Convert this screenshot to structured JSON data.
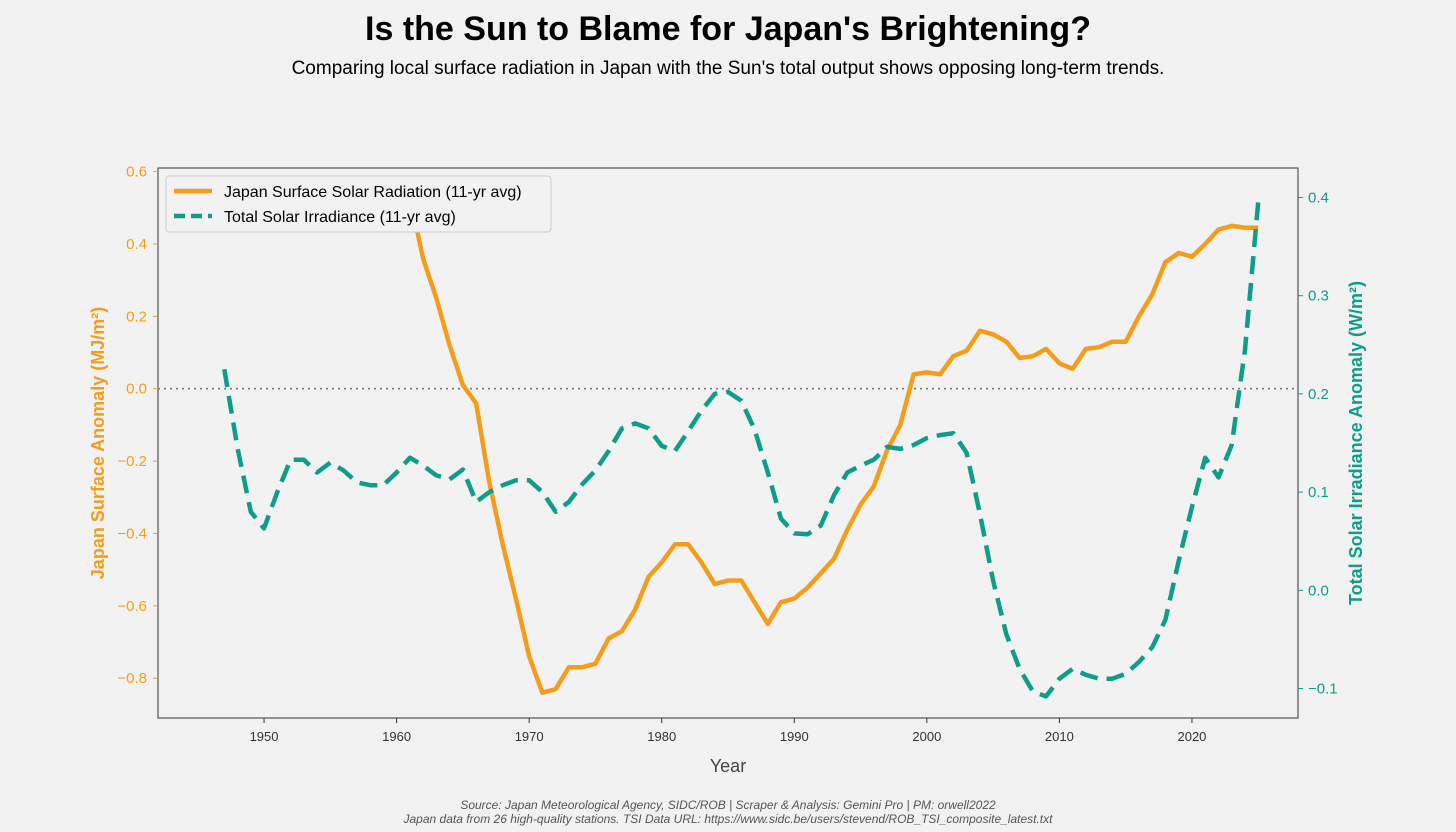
{
  "header": {
    "title": "Is the Sun to Blame for Japan's Brightening?",
    "subtitle": "Comparing local surface radiation in Japan with the Sun's total output shows opposing long-term trends."
  },
  "footer": {
    "line1": "Source: Japan Meteorological Agency, SIDC/ROB | Scraper & Analysis: Gemini Pro | PM: orwell2022",
    "line2": "Japan data from 26 high-quality stations. TSI Data URL: https://www.sidc.be/users/stevend/ROB_TSI_composite_latest.txt"
  },
  "colors": {
    "japan": "#f59c1a",
    "tsi": "#0d9e8a",
    "axis": "#333333",
    "background": "#f2f2f2",
    "zero_line": "#777777"
  },
  "chart_data": {
    "type": "line",
    "xlabel": "Year",
    "ylabel_left": "Japan Surface Anomaly (MJ/m²)",
    "ylabel_right": "Total Solar Irradiance Anomaly (W/m²)",
    "xlim": [
      1942,
      2028
    ],
    "ylim_left": [
      -0.91,
      0.61
    ],
    "ylim_right": [
      -0.13,
      0.43
    ],
    "x_ticks": [
      1950,
      1960,
      1970,
      1980,
      1990,
      2000,
      2010,
      2020
    ],
    "x_tick_labels": [
      "1950",
      "1960",
      "1970",
      "1980",
      "1990",
      "2000",
      "2010",
      "2020"
    ],
    "y_left_ticks": [
      0.6,
      0.4,
      0.2,
      0.0,
      -0.2,
      -0.4,
      -0.6,
      -0.8
    ],
    "y_left_tick_labels": [
      "0.6",
      "0.4",
      "0.2",
      "0.0",
      "−0.2",
      "−0.4",
      "−0.6",
      "−0.8"
    ],
    "y_right_ticks": [
      0.4,
      0.3,
      0.2,
      0.1,
      0.0,
      -0.1
    ],
    "y_right_tick_labels": [
      "0.4",
      "0.3",
      "0.2",
      "0.1",
      "0.0",
      "−0.1"
    ],
    "zero_line": {
      "axis": "left",
      "value": 0.0,
      "style": "dotted"
    },
    "legend": {
      "position": "top-left",
      "entries": [
        "Japan Surface Solar Radiation (11-yr avg)",
        "Total Solar Irradiance (11-yr avg)"
      ]
    },
    "series": [
      {
        "name": "Japan Surface Solar Radiation (11-yr avg)",
        "axis": "left",
        "style": "solid",
        "x": [
          1961,
          1962,
          1963,
          1964,
          1965,
          1966,
          1967,
          1968,
          1969,
          1970,
          1971,
          1972,
          1973,
          1974,
          1975,
          1976,
          1977,
          1978,
          1979,
          1980,
          1981,
          1982,
          1983,
          1984,
          1985,
          1986,
          1987,
          1988,
          1989,
          1990,
          1991,
          1992,
          1993,
          1994,
          1995,
          1996,
          1997,
          1998,
          1999,
          2000,
          2001,
          2002,
          2003,
          2004,
          2005,
          2006,
          2007,
          2008,
          2009,
          2010,
          2011,
          2012,
          2013,
          2014,
          2015,
          2016,
          2017,
          2018,
          2019,
          2020,
          2021,
          2022,
          2023,
          2024,
          2025
        ],
        "y": [
          0.53,
          0.36,
          0.25,
          0.12,
          0.01,
          -0.04,
          -0.26,
          -0.43,
          -0.58,
          -0.74,
          -0.84,
          -0.83,
          -0.77,
          -0.77,
          -0.76,
          -0.69,
          -0.67,
          -0.61,
          -0.52,
          -0.48,
          -0.43,
          -0.43,
          -0.48,
          -0.54,
          -0.53,
          -0.53,
          -0.59,
          -0.65,
          -0.59,
          -0.58,
          -0.55,
          -0.51,
          -0.47,
          -0.39,
          -0.32,
          -0.27,
          -0.17,
          -0.1,
          0.04,
          0.045,
          0.04,
          0.09,
          0.105,
          0.16,
          0.15,
          0.13,
          0.085,
          0.09,
          0.11,
          0.07,
          0.055,
          0.11,
          0.115,
          0.13,
          0.13,
          0.2,
          0.26,
          0.35,
          0.375,
          0.365,
          0.4,
          0.44,
          0.45,
          0.445,
          0.445
        ]
      },
      {
        "name": "Total Solar Irradiance (11-yr avg)",
        "axis": "right",
        "style": "dashed",
        "x": [
          1947,
          1948,
          1949,
          1950,
          1951,
          1952,
          1953,
          1954,
          1955,
          1956,
          1957,
          1958,
          1959,
          1960,
          1961,
          1962,
          1963,
          1964,
          1965,
          1966,
          1967,
          1968,
          1969,
          1970,
          1971,
          1972,
          1973,
          1974,
          1975,
          1976,
          1977,
          1978,
          1979,
          1980,
          1981,
          1982,
          1983,
          1984,
          1985,
          1986,
          1987,
          1988,
          1989,
          1990,
          1991,
          1992,
          1993,
          1994,
          1995,
          1996,
          1997,
          1998,
          1999,
          2000,
          2001,
          2002,
          2003,
          2004,
          2005,
          2006,
          2007,
          2008,
          2009,
          2010,
          2011,
          2012,
          2013,
          2014,
          2015,
          2016,
          2017,
          2018,
          2019,
          2020,
          2021,
          2022,
          2023,
          2024,
          2025
        ],
        "y": [
          0.225,
          0.145,
          0.08,
          0.063,
          0.1,
          0.133,
          0.133,
          0.12,
          0.13,
          0.122,
          0.11,
          0.107,
          0.107,
          0.12,
          0.135,
          0.127,
          0.117,
          0.113,
          0.123,
          0.09,
          0.1,
          0.107,
          0.112,
          0.112,
          0.1,
          0.08,
          0.09,
          0.108,
          0.122,
          0.142,
          0.165,
          0.17,
          0.165,
          0.147,
          0.142,
          0.162,
          0.183,
          0.2,
          0.202,
          0.193,
          0.164,
          0.12,
          0.073,
          0.058,
          0.057,
          0.066,
          0.097,
          0.12,
          0.127,
          0.133,
          0.146,
          0.144,
          0.148,
          0.155,
          0.158,
          0.16,
          0.14,
          0.078,
          0.01,
          -0.045,
          -0.08,
          -0.103,
          -0.108,
          -0.09,
          -0.08,
          -0.086,
          -0.09,
          -0.09,
          -0.085,
          -0.073,
          -0.058,
          -0.03,
          0.03,
          0.085,
          0.135,
          0.115,
          0.148,
          0.245,
          0.395
        ]
      }
    ]
  }
}
